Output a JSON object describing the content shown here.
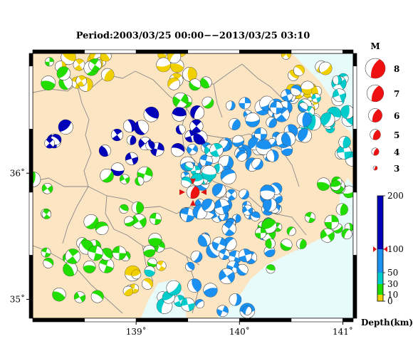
{
  "title": "Period:2003/03/25 00:00−−2013/03/25 03:10",
  "map": {
    "lon_min": 138.0,
    "lon_max": 141.1,
    "lat_min": 34.85,
    "lat_max": 36.95,
    "lon_ticks": [
      {
        "value": 139,
        "label": "139˚"
      },
      {
        "value": 140,
        "label": "140˚"
      },
      {
        "value": 141,
        "label": "141˚"
      }
    ],
    "lat_ticks": [
      {
        "value": 35,
        "label": "35˚"
      },
      {
        "value": 36,
        "label": "36˚"
      }
    ],
    "land_color": "#fce5c2",
    "sea_color": "#e8fbfb",
    "border_color": "#8a8a8a"
  },
  "legend_magnitude": {
    "header": "M",
    "items": [
      {
        "m": 8,
        "label": "8"
      },
      {
        "m": 7,
        "label": "7"
      },
      {
        "m": 6,
        "label": "6"
      },
      {
        "m": 5,
        "label": "5"
      },
      {
        "m": 4,
        "label": "4"
      },
      {
        "m": 3,
        "label": "3"
      }
    ],
    "color": "#ee1111"
  },
  "legend_depth": {
    "title": "Depth(km)",
    "min": 0,
    "max": 200,
    "ticks": [
      {
        "value": 200,
        "label": "200"
      },
      {
        "value": 100,
        "label": "100"
      },
      {
        "value": 50,
        "label": "50"
      },
      {
        "value": 30,
        "label": "30"
      },
      {
        "value": 10,
        "label": "10"
      },
      {
        "value": 0,
        "label": "0"
      }
    ],
    "bands": [
      {
        "from": 0,
        "to": 10,
        "color": "#f0d000"
      },
      {
        "from": 10,
        "to": 30,
        "color": "#22dd00"
      },
      {
        "from": 30,
        "to": 50,
        "color": "#00cccc"
      },
      {
        "from": 50,
        "to": 100,
        "color": "#1a90f0"
      },
      {
        "from": 100,
        "to": 200,
        "color": "#0000b8"
      }
    ],
    "marker_depth": 100,
    "marker_color": "#dd1111"
  },
  "target_event": {
    "lon": 139.55,
    "lat": 35.85,
    "m": 5.0,
    "depth": 100
  }
}
